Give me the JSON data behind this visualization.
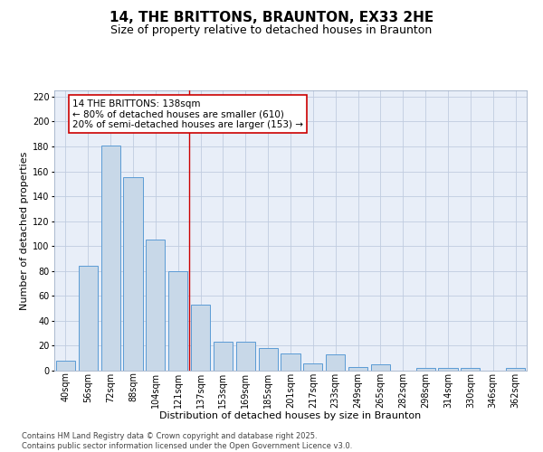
{
  "title": "14, THE BRITTONS, BRAUNTON, EX33 2HE",
  "subtitle": "Size of property relative to detached houses in Braunton",
  "xlabel": "Distribution of detached houses by size in Braunton",
  "ylabel": "Number of detached properties",
  "categories": [
    "40sqm",
    "56sqm",
    "72sqm",
    "88sqm",
    "104sqm",
    "121sqm",
    "137sqm",
    "153sqm",
    "169sqm",
    "185sqm",
    "201sqm",
    "217sqm",
    "233sqm",
    "249sqm",
    "265sqm",
    "282sqm",
    "298sqm",
    "314sqm",
    "330sqm",
    "346sqm",
    "362sqm"
  ],
  "values": [
    8,
    84,
    181,
    155,
    105,
    80,
    53,
    23,
    23,
    18,
    14,
    6,
    13,
    3,
    5,
    0,
    2,
    2,
    2,
    0,
    2
  ],
  "bar_color": "#c8d8e8",
  "bar_edge_color": "#5b9bd5",
  "vline_color": "#cc0000",
  "annotation_text": "14 THE BRITTONS: 138sqm\n← 80% of detached houses are smaller (610)\n20% of semi-detached houses are larger (153) →",
  "annotation_box_color": "#ffffff",
  "annotation_box_edge": "#cc0000",
  "ylim": [
    0,
    225
  ],
  "yticks": [
    0,
    20,
    40,
    60,
    80,
    100,
    120,
    140,
    160,
    180,
    200,
    220
  ],
  "grid_color": "#c0cce0",
  "background_color": "#e8eef8",
  "footer": "Contains HM Land Registry data © Crown copyright and database right 2025.\nContains public sector information licensed under the Open Government Licence v3.0.",
  "title_fontsize": 11,
  "subtitle_fontsize": 9,
  "xlabel_fontsize": 8,
  "ylabel_fontsize": 8,
  "tick_fontsize": 7,
  "annotation_fontsize": 7.5,
  "footer_fontsize": 6
}
